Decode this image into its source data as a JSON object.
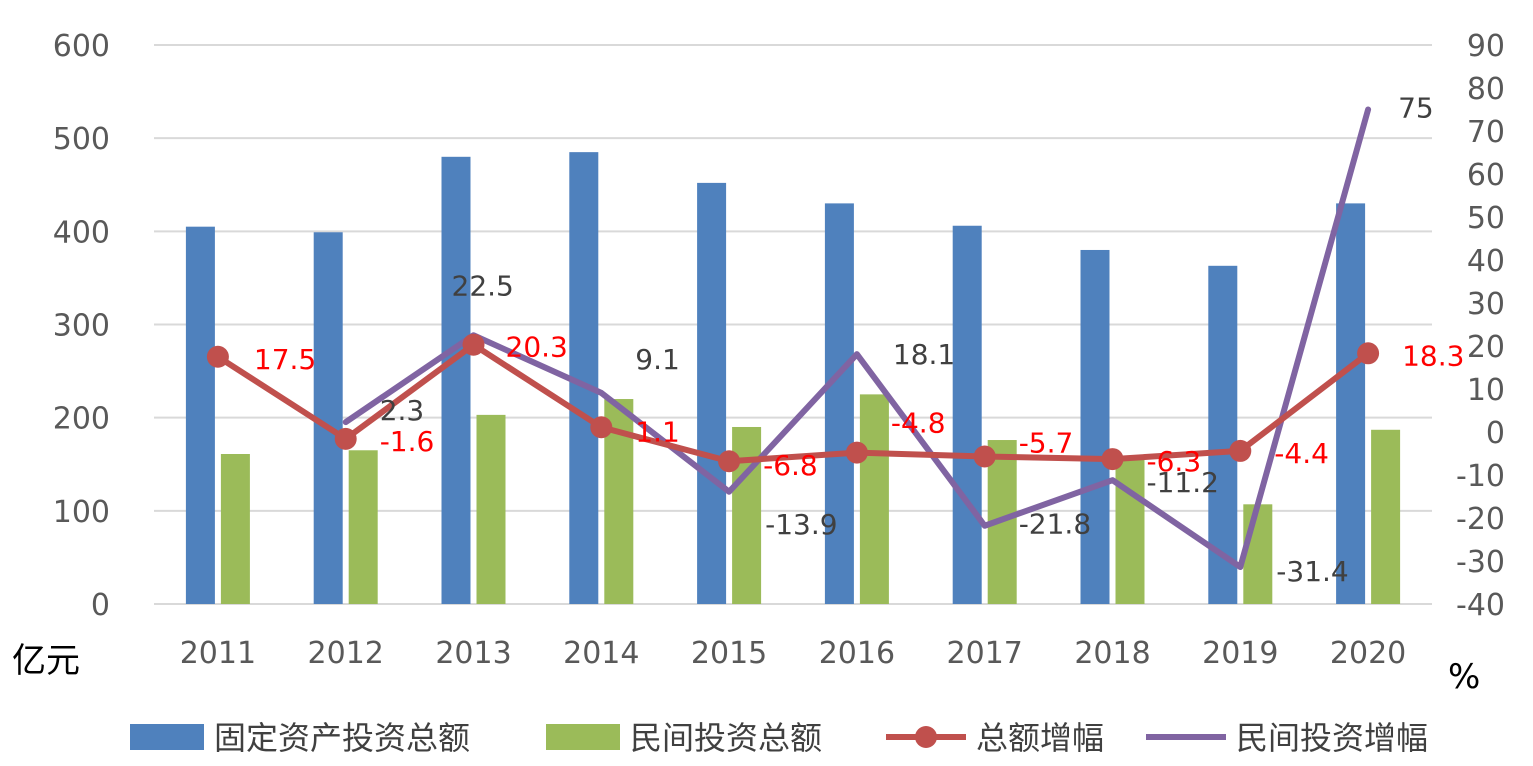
{
  "chart_data": {
    "type": "bar",
    "categories": [
      "2011",
      "2012",
      "2013",
      "2014",
      "2015",
      "2016",
      "2017",
      "2018",
      "2019",
      "2020"
    ],
    "series": [
      {
        "name": "固定资产投资总额",
        "kind": "bar",
        "axis": "left",
        "color": "#4f81bd",
        "values": [
          405,
          399,
          480,
          485,
          452,
          430,
          406,
          380,
          363,
          430
        ]
      },
      {
        "name": "民间投资总额",
        "kind": "bar",
        "axis": "left",
        "color": "#9bbb59",
        "values": [
          161,
          165,
          203,
          220,
          190,
          225,
          176,
          155,
          107,
          187
        ]
      },
      {
        "name": "总额增幅",
        "kind": "line",
        "axis": "right",
        "color": "#c0504d",
        "marker": "circle",
        "values": [
          17.5,
          -1.6,
          20.3,
          1.1,
          -6.8,
          -4.8,
          -5.7,
          -6.3,
          -4.4,
          18.3
        ],
        "labels": [
          "17.5",
          "-1.6",
          "20.3",
          "1.1",
          "-6.8",
          "-4.8",
          "-5.7",
          "-6.3",
          "-4.4",
          "18.3"
        ],
        "label_color": "#ff0000"
      },
      {
        "name": "民间投资增幅",
        "kind": "line",
        "axis": "right",
        "color": "#8064a2",
        "values": [
          null,
          2.3,
          22.5,
          9.1,
          -13.9,
          18.1,
          -21.8,
          -11.2,
          -31.4,
          75
        ],
        "labels": [
          "",
          "2.3",
          "22.5",
          "9.1",
          "-13.9",
          "18.1",
          "-21.8",
          "-11.2",
          "-31.4",
          "75"
        ],
        "label_color": "#404040"
      }
    ],
    "ylim": [
      0,
      600
    ],
    "y_ticks": [
      "0",
      "100",
      "200",
      "300",
      "400",
      "500",
      "600"
    ],
    "ylabel": "亿元",
    "y2lim": [
      -40,
      90
    ],
    "y2_ticks": [
      "-40",
      "-30",
      "-20",
      "-10",
      "0",
      "10",
      "20",
      "30",
      "40",
      "50",
      "60",
      "70",
      "80",
      "90"
    ],
    "y2label": "%",
    "grid": true,
    "legend": "bottom"
  }
}
